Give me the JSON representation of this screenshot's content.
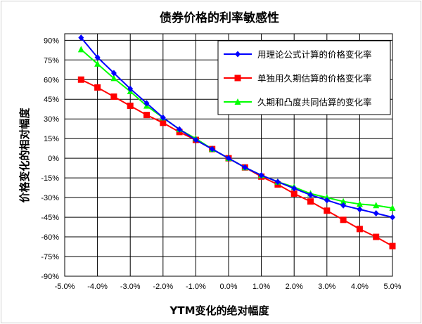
{
  "chart_data": {
    "type": "line",
    "title": "债券价格的利率敏感性",
    "xlabel": "YTM变化的绝对幅度",
    "ylabel": "价格变化的相对幅度",
    "x_ticks": [
      "-5.0%",
      "-4.0%",
      "-3.0%",
      "-2.0%",
      "-1.0%",
      "0.0%",
      "1.0%",
      "2.0%",
      "3.0%",
      "4.0%",
      "5.0%"
    ],
    "y_ticks": [
      "90%",
      "75%",
      "60%",
      "45%",
      "30%",
      "15%",
      "0%",
      "-15%",
      "-30%",
      "-45%",
      "-60%",
      "-75%",
      "-90%"
    ],
    "xlim": [
      -5.0,
      5.0
    ],
    "ylim": [
      -90,
      95
    ],
    "grid": true,
    "legend_position": "top-right",
    "x": [
      -4.5,
      -4.0,
      -3.5,
      -3.0,
      -2.5,
      -2.0,
      -1.5,
      -1.0,
      -0.5,
      0.0,
      0.5,
      1.0,
      1.5,
      2.0,
      2.5,
      3.0,
      3.5,
      4.0,
      4.5,
      5.0
    ],
    "series": [
      {
        "name": "用理论公式计算的价格变化率",
        "color": "#0000ff",
        "marker": "diamond",
        "values": [
          92,
          77,
          65,
          53,
          42,
          31,
          22,
          14,
          7,
          0,
          -7,
          -13,
          -18,
          -23,
          -28,
          -32,
          -36,
          -39,
          -42,
          -45
        ]
      },
      {
        "name": "单独用久期估算的价格变化率",
        "color": "#ff0000",
        "marker": "square",
        "values": [
          60,
          54,
          47,
          40,
          33,
          27,
          20,
          14,
          7,
          0,
          -7,
          -14,
          -20,
          -27,
          -33,
          -40,
          -47,
          -54,
          -60,
          -67
        ]
      },
      {
        "name": "久期和凸度共同估算的变化率",
        "color": "#00ff00",
        "marker": "triangle",
        "values": [
          83,
          72,
          61,
          51,
          40,
          31,
          22,
          15,
          7,
          0,
          -7,
          -13,
          -18,
          -22,
          -27,
          -30,
          -33,
          -35,
          -36,
          -38
        ]
      }
    ]
  }
}
